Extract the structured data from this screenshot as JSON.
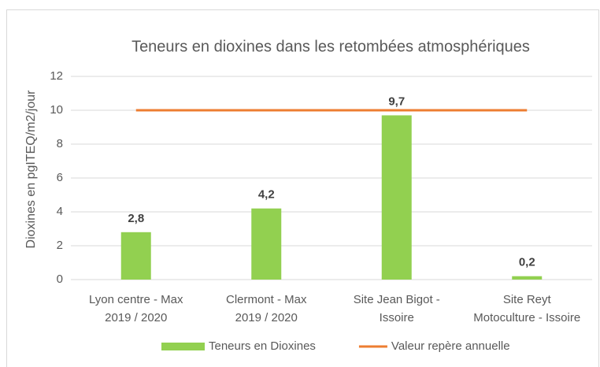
{
  "chart_data": {
    "type": "bar",
    "title": "Teneurs en dioxines dans les retombées atmosphériques",
    "y_label": "Dioxines en pgITEQ/m2/jour",
    "categories": [
      [
        "Lyon centre - Max",
        "2019 / 2020"
      ],
      [
        "Clermont - Max",
        "2019 / 2020"
      ],
      [
        "Site Jean Bigot -",
        "Issoire"
      ],
      [
        "Site Reyt",
        "Motoculture - Issoire"
      ]
    ],
    "series": [
      {
        "name": "Teneurs en Dioxines",
        "type": "bar",
        "color": "#92d050",
        "values": [
          2.8,
          4.2,
          9.7,
          0.2
        ],
        "value_labels": [
          "2,8",
          "4,2",
          "9,7",
          "0,2"
        ]
      },
      {
        "name": "Valeur repère annuelle",
        "type": "line",
        "color": "#ed7d31",
        "values": [
          10,
          10,
          10,
          10
        ]
      }
    ],
    "ylim": [
      0,
      12
    ],
    "yticks": [
      0,
      2,
      4,
      6,
      8,
      10,
      12
    ],
    "grid": true,
    "legend": "bottom"
  }
}
